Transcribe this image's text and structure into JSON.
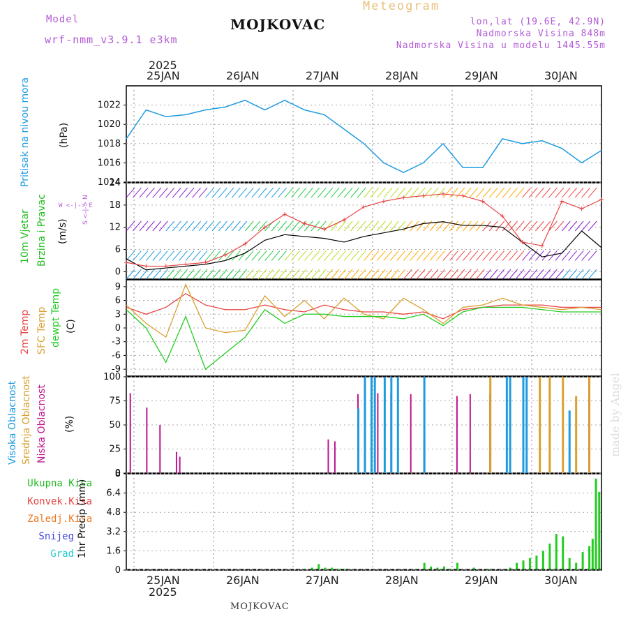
{
  "header": {
    "model_label": "Model",
    "model_name": "wrf-nmm_v3.9.1 e3km",
    "title": "MOJKOVAC",
    "meteogram_label": "Meteogram",
    "lonlat": "lon,lat (19.6E, 42.9N)",
    "altitude": "Nadmorska Visina 848m",
    "model_altitude": "Nadmorska Visina u modelu 1445.55m",
    "footer": "MOJKOVAC",
    "watermark": "made by Angel",
    "year": "2025"
  },
  "dates": [
    "25JAN",
    "26JAN",
    "27JAN",
    "28JAN",
    "29JAN",
    "30JAN"
  ],
  "colors": {
    "pressure": "#1e9be0",
    "wind_label": "#22bb22",
    "t2m": "#e84444",
    "sfc": "#d9a030",
    "dew": "#22cc22",
    "high_cloud": "#1e9be0",
    "mid_cloud": "#d9a030",
    "low_cloud": "#c0158c",
    "precip": "#22cc22",
    "conv": "#e84444",
    "frozen": "#ee7722",
    "snow": "#4444dd",
    "grad": "#22cccc",
    "dir_label": "#b25ad6"
  },
  "panels": {
    "pressure": {
      "label": "Pritisak na nivou mora",
      "unit": "(hPa)"
    },
    "wind": {
      "label1": "10m Vjetar",
      "label2": "Brzina i Pravac",
      "unit": "(m/s)",
      "compass": "W <-|-> E",
      "compass_v": "S <-|-> N"
    },
    "temp": {
      "label1": "2m Temp",
      "label2": "SFC Temp",
      "label3": "dewpt Temp",
      "unit": "(C)"
    },
    "cloud": {
      "label1": "Visoka Oblacnost",
      "label2": "Srednja Oblacnost",
      "label3": "Niska Oblacnost",
      "unit": "(%)"
    },
    "precip": {
      "ukupna": "Ukupna Kisa",
      "konvek": "Konvek.Kisa",
      "zaledj": "Zaledj.Kisa",
      "snijeg": "Snijeg",
      "grad": "Grad",
      "unit": "1hr Precip (mm)"
    }
  },
  "chart_data": [
    {
      "type": "line",
      "title": "Pritisak na nivou mora",
      "ylabel": "(hPa)",
      "ylim": [
        1014,
        1024
      ],
      "yticks": [
        1014,
        1016,
        1018,
        1020,
        1022
      ],
      "x_hours": [
        0,
        6,
        12,
        18,
        24,
        30,
        36,
        42,
        48,
        54,
        60,
        66,
        72,
        78,
        84,
        90,
        96,
        102,
        108,
        114,
        120,
        126,
        132,
        138,
        144
      ],
      "series": [
        {
          "name": "MSLP",
          "values": [
            1018.5,
            1021.5,
            1020.8,
            1021.0,
            1021.5,
            1021.8,
            1022.5,
            1021.5,
            1022.5,
            1021.5,
            1021.0,
            1019.5,
            1018.0,
            1016.0,
            1015.0,
            1016.0,
            1018.0,
            1015.5,
            1015.5,
            1018.5,
            1018.0,
            1018.3,
            1017.5,
            1016.0,
            1017.3
          ]
        }
      ]
    },
    {
      "type": "line",
      "title": "10m Vjetar Brzina i Pravac",
      "ylabel": "(m/s)",
      "ylim": [
        -2,
        24
      ],
      "yticks": [
        0,
        6,
        12,
        18,
        24
      ],
      "x_hours": [
        0,
        6,
        12,
        18,
        24,
        30,
        36,
        42,
        48,
        54,
        60,
        66,
        72,
        78,
        84,
        90,
        96,
        102,
        108,
        114,
        120,
        126,
        132,
        138,
        144
      ],
      "series": [
        {
          "name": "speed",
          "values": [
            3.5,
            0.5,
            1.0,
            1.5,
            2.0,
            3.0,
            5.0,
            8.5,
            10.0,
            9.5,
            9.0,
            8.0,
            9.5,
            10.5,
            11.5,
            13.0,
            13.5,
            12.5,
            12.5,
            12.0,
            8.0,
            4.0,
            5.0,
            11.0,
            6.5
          ]
        },
        {
          "name": "gust",
          "values": [
            2.5,
            1.5,
            1.5,
            2.0,
            2.5,
            4.5,
            7.5,
            12.0,
            15.5,
            13.0,
            11.5,
            14.0,
            17.5,
            19.0,
            20.0,
            20.5,
            21.0,
            20.5,
            19.0,
            15.0,
            8.0,
            7.0,
            19.0,
            17.0,
            19.5
          ]
        }
      ]
    },
    {
      "type": "line",
      "title": "Temperature",
      "ylabel": "(C)",
      "ylim": [
        -10.5,
        10.5
      ],
      "yticks": [
        9,
        6,
        3,
        0,
        -3,
        -6,
        -9
      ],
      "x_hours": [
        0,
        6,
        12,
        18,
        24,
        30,
        36,
        42,
        48,
        54,
        60,
        66,
        72,
        78,
        84,
        90,
        96,
        102,
        108,
        114,
        120,
        126,
        132,
        138,
        144
      ],
      "series": [
        {
          "name": "2m Temp",
          "values": [
            4.5,
            3.0,
            4.5,
            7.5,
            5.0,
            4.0,
            4.0,
            5.0,
            4.0,
            3.5,
            5.0,
            4.0,
            3.5,
            3.5,
            3.0,
            3.5,
            2.0,
            4.0,
            4.5,
            5.0,
            5.0,
            5.0,
            4.5,
            4.5,
            4.5
          ]
        },
        {
          "name": "SFC Temp",
          "values": [
            5.0,
            1.0,
            -2.0,
            9.5,
            0.0,
            -1.0,
            -0.5,
            7.0,
            2.5,
            6.0,
            2.0,
            6.5,
            3.0,
            2.0,
            6.5,
            4.0,
            1.0,
            4.5,
            5.0,
            6.5,
            5.0,
            4.5,
            4.0,
            4.5,
            4.0
          ]
        },
        {
          "name": "dewpt Temp",
          "values": [
            4.0,
            0.0,
            -7.5,
            2.5,
            -9.0,
            -5.5,
            -2.0,
            4.0,
            1.0,
            3.0,
            3.0,
            2.5,
            2.5,
            2.5,
            2.0,
            3.0,
            0.5,
            3.5,
            4.5,
            4.5,
            4.5,
            4.0,
            3.5,
            3.5,
            3.5
          ]
        }
      ]
    },
    {
      "type": "bar",
      "title": "Oblacnost",
      "ylabel": "(%)",
      "ylim": [
        0,
        100
      ],
      "yticks": [
        0,
        25,
        50,
        75,
        100
      ],
      "series": [
        {
          "name": "Niska",
          "hours": [
            1,
            6,
            10,
            15,
            16,
            61,
            63,
            70,
            76,
            80,
            86,
            100,
            104,
            110,
            120,
            140
          ],
          "values": [
            83,
            68,
            50,
            22,
            17,
            35,
            33,
            82,
            83,
            82,
            82,
            80,
            82,
            82,
            82,
            100
          ]
        },
        {
          "name": "Srednja",
          "hours": [
            72,
            90,
            110,
            120,
            125,
            128,
            132,
            136,
            140
          ],
          "values": [
            100,
            35,
            100,
            35,
            100,
            100,
            100,
            80,
            100
          ]
        },
        {
          "name": "Visoka",
          "hours": [
            70,
            72,
            74,
            75,
            78,
            80,
            82,
            90,
            115,
            116,
            120,
            121,
            134
          ],
          "values": [
            67,
            100,
            100,
            100,
            100,
            100,
            100,
            100,
            100,
            100,
            100,
            100,
            65
          ]
        }
      ]
    },
    {
      "type": "bar",
      "title": "1hr Precip",
      "ylabel": "1hr Precip (mm)",
      "ylim": [
        0,
        8
      ],
      "yticks": [
        0,
        1.6,
        3.2,
        4.8,
        6.4,
        8
      ],
      "hours": [
        54,
        56,
        58,
        60,
        62,
        64,
        66,
        90,
        92,
        94,
        96,
        98,
        100,
        105,
        110,
        116,
        118,
        120,
        122,
        124,
        126,
        128,
        130,
        132,
        134,
        136,
        138,
        140,
        141,
        142,
        143
      ],
      "values": [
        0.1,
        0.2,
        0.5,
        0.2,
        0.2,
        0.1,
        0.1,
        0.6,
        0.3,
        0.2,
        0.3,
        0.1,
        0.6,
        0.2,
        0.1,
        0.2,
        0.6,
        0.8,
        1.0,
        1.2,
        1.6,
        2.2,
        3.0,
        2.8,
        1.0,
        0.6,
        1.5,
        2.0,
        2.6,
        7.6,
        6.5
      ]
    }
  ]
}
